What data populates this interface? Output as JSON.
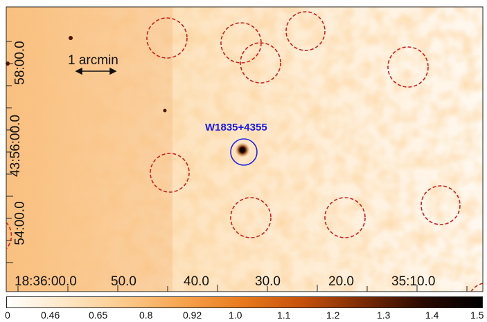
{
  "target_label": "W1835+4355",
  "scale_bar_label": "1 arcmin",
  "dec_ticks": [
    "58:00.0",
    "43:56:00.0",
    "54:00.0"
  ],
  "ra_ticks": [
    "18:36:00.0",
    "50.0",
    "40.0",
    "30.0",
    "20.0",
    "35:10.0"
  ],
  "colorbar_ticks": [
    "0",
    "0.46",
    "0.65",
    "0.8",
    "0.92",
    "1.0",
    "1.1",
    "1.2",
    "1.3",
    "1.4",
    "1.5"
  ],
  "colors": {
    "target_circle": "#2222dd",
    "background_circles": "#cc1f1f",
    "colormap": [
      "#ffffff",
      "#fde6c4",
      "#fbc98a",
      "#f6a24c",
      "#e8781a",
      "#c4500a",
      "#7a2a05",
      "#2a0a02",
      "#000000"
    ]
  }
}
